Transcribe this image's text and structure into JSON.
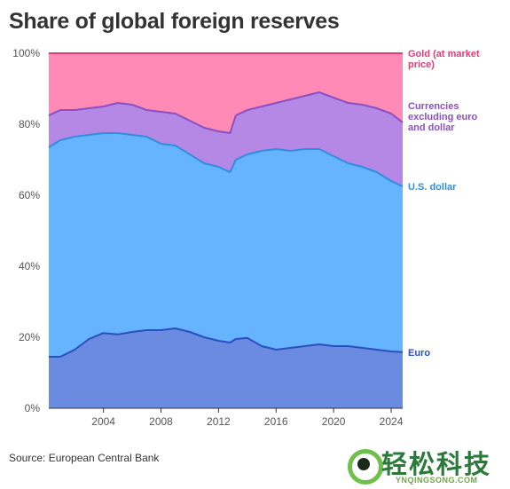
{
  "title": "Share of global foreign reserves",
  "source": "Source: European Central Bank",
  "logo": {
    "word": "轻松科技",
    "url": "YNQINGSONG.COM"
  },
  "chart_data": {
    "type": "area",
    "stacked": true,
    "xlim": [
      2000.2,
      2024.8
    ],
    "ylim": [
      0,
      100
    ],
    "grid": false,
    "x_ticks": [
      2004,
      2008,
      2012,
      2016,
      2020,
      2024
    ],
    "x_tick_labels": [
      "2004",
      "2008",
      "2012",
      "2016",
      "2020",
      "2024"
    ],
    "y_ticks": [
      0,
      20,
      40,
      60,
      80,
      100
    ],
    "y_tick_labels": [
      "0%",
      "20%",
      "40%",
      "60%",
      "80%",
      "100%"
    ],
    "x": [
      2000.2,
      2001,
      2002,
      2003,
      2004,
      2005,
      2006,
      2007,
      2008,
      2009,
      2010,
      2011,
      2012,
      2012.8,
      2013.2,
      2014,
      2015,
      2016,
      2017,
      2018,
      2019,
      2020,
      2021,
      2022,
      2023,
      2024,
      2024.8
    ],
    "series": [
      {
        "name": "Euro",
        "color": "#6a8be0",
        "line_color": "#2a4fbf",
        "values": [
          14.5,
          14.5,
          16.5,
          19.5,
          21.2,
          20.8,
          21.5,
          22.0,
          22.0,
          22.5,
          21.5,
          20.0,
          19.0,
          18.5,
          19.5,
          19.8,
          17.5,
          16.5,
          17.0,
          17.5,
          18.0,
          17.5,
          17.5,
          17.0,
          16.5,
          16.0,
          15.8
        ]
      },
      {
        "name": "U.S. dollar",
        "color": "#66b3ff",
        "line_color": "#2f8ee0",
        "values": [
          73.5,
          75.5,
          76.5,
          77.0,
          77.5,
          77.5,
          77.0,
          76.5,
          74.5,
          74.0,
          71.5,
          69.0,
          68.0,
          66.5,
          70.0,
          71.5,
          72.5,
          73.0,
          72.5,
          73.0,
          73.0,
          71.0,
          69.0,
          68.0,
          66.5,
          64.0,
          62.5
        ]
      },
      {
        "name": "Currencies excluding euro and dollar",
        "color": "#b488e4",
        "line_color": "#8a4fc4",
        "values": [
          82.5,
          84.0,
          84.0,
          84.5,
          85.0,
          86.0,
          85.5,
          84.0,
          83.5,
          83.0,
          81.0,
          79.0,
          78.0,
          77.5,
          82.5,
          84.0,
          85.0,
          86.0,
          87.0,
          88.0,
          89.0,
          87.5,
          86.0,
          85.5,
          84.5,
          83.0,
          80.5
        ]
      },
      {
        "name": "Gold (at market price)",
        "color": "#ff8ab5",
        "line_color": "#e23a7a",
        "values": [
          100,
          100,
          100,
          100,
          100,
          100,
          100,
          100,
          100,
          100,
          100,
          100,
          100,
          100,
          100,
          100,
          100,
          100,
          100,
          100,
          100,
          100,
          100,
          100,
          100,
          100,
          100
        ]
      }
    ],
    "series_labels": [
      {
        "lines": [
          "Euro"
        ]
      },
      {
        "lines": [
          "U.S. dollar"
        ]
      },
      {
        "lines": [
          "Currencies",
          "excluding euro",
          "and dollar"
        ]
      },
      {
        "lines": [
          "Gold (at market",
          "price)"
        ]
      }
    ]
  }
}
